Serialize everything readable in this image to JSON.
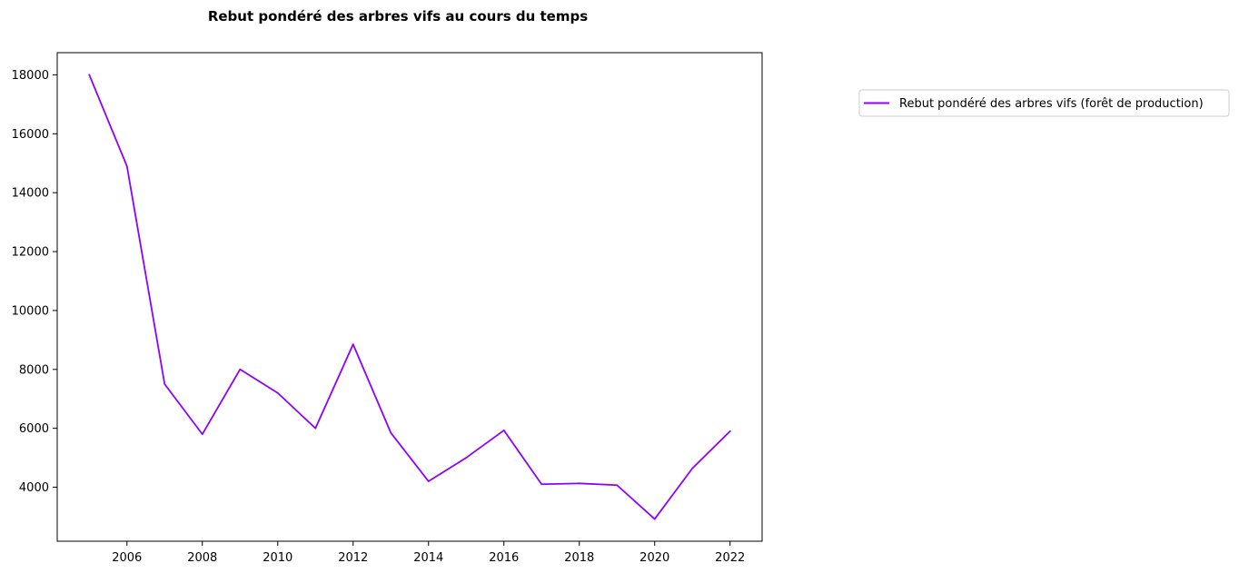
{
  "chart_data": {
    "type": "line",
    "title": "Rebut pondéré des arbres vifs au cours du temps",
    "xlabel": "",
    "ylabel": "",
    "x": [
      2005,
      2006,
      2007,
      2008,
      2009,
      2010,
      2011,
      2012,
      2013,
      2014,
      2015,
      2016,
      2017,
      2018,
      2019,
      2020,
      2021,
      2022
    ],
    "series": [
      {
        "name": "Rebut pondéré des arbres vifs (forêt de production)",
        "color": "#8f00ff",
        "values": [
          18000,
          14900,
          7500,
          5800,
          8000,
          7200,
          6000,
          8850,
          5850,
          4200,
          5000,
          5930,
          4100,
          4130,
          4070,
          2920,
          4640,
          5900
        ]
      }
    ],
    "xticks": [
      "2006",
      "2008",
      "2010",
      "2012",
      "2014",
      "2016",
      "2018",
      "2020",
      "2022"
    ],
    "yticks": [
      "4000",
      "6000",
      "8000",
      "10000",
      "12000",
      "14000",
      "16000",
      "18000"
    ],
    "xlim": [
      2004.15,
      2022.85
    ],
    "ylim": [
      2166,
      18754
    ],
    "grid": false,
    "legend": "outside-right"
  }
}
